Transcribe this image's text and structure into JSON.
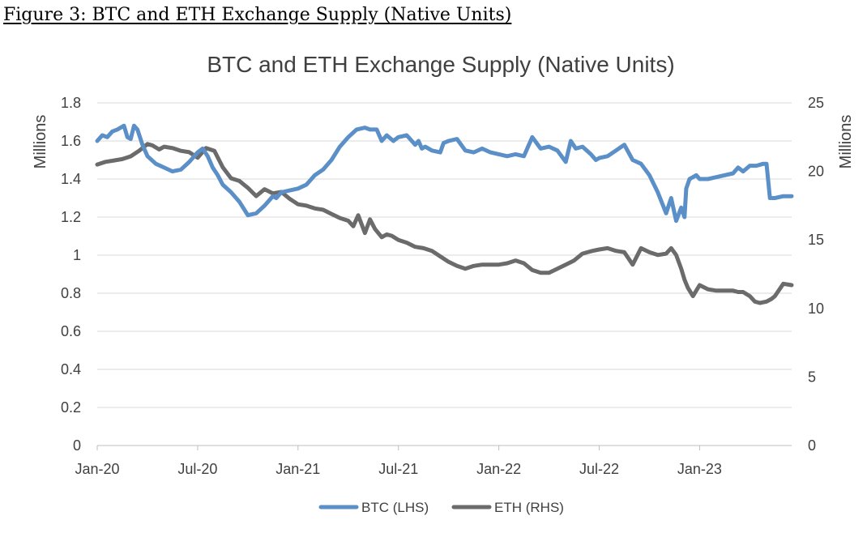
{
  "figure_caption": "Figure 3: BTC and ETH Exchange Supply (Native Units)",
  "colors": {
    "btc": "#5B8FC7",
    "eth": "#6B6B6B",
    "grid": "#D9D9D9",
    "axis": "#BFBFBF",
    "text": "#404040"
  },
  "chart_data": {
    "type": "line",
    "title": "BTC and ETH Exchange Supply (Native Units)",
    "ylabel_left": "Millions",
    "ylabel_right": "Millions",
    "x_ticks": [
      "Jan-20",
      "Jul-20",
      "Jan-21",
      "Jul-21",
      "Jan-22",
      "Jul-22",
      "Jan-23"
    ],
    "x_range_months": [
      0,
      41.5
    ],
    "ylim_left": [
      0,
      1.8
    ],
    "ylim_right": [
      0,
      25
    ],
    "y_ticks_left": [
      "0",
      "0.2",
      "0.4",
      "0.6",
      "0.8",
      "1",
      "1.2",
      "1.4",
      "1.6",
      "1.8"
    ],
    "y_ticks_right": [
      "0",
      "5",
      "10",
      "15",
      "20",
      "25"
    ],
    "legend": "bottom-center",
    "series": [
      {
        "name": "BTC (LHS)",
        "axis": "left",
        "x": [
          0,
          0.3,
          0.6,
          0.9,
          1.2,
          1.6,
          1.8,
          2.0,
          2.2,
          2.4,
          2.7,
          3.0,
          3.5,
          4.0,
          4.5,
          5.0,
          5.5,
          6.0,
          6.3,
          6.6,
          6.9,
          7.2,
          7.5,
          8.0,
          8.5,
          9.0,
          9.5,
          10.0,
          10.5,
          10.7,
          11.0,
          11.5,
          12.0,
          12.5,
          13.0,
          13.5,
          14.0,
          14.5,
          15.0,
          15.5,
          16.0,
          16.3,
          16.7,
          17.0,
          17.3,
          17.7,
          18.0,
          18.5,
          19.0,
          19.2,
          19.4,
          19.6,
          20.0,
          20.5,
          20.7,
          21.0,
          21.5,
          22.0,
          22.5,
          23.0,
          23.5,
          24.0,
          24.5,
          25.0,
          25.5,
          26.0,
          26.5,
          27.0,
          27.5,
          28.0,
          28.3,
          28.6,
          29.0,
          29.5,
          29.8,
          30.0,
          30.5,
          31.0,
          31.5,
          32.0,
          32.5,
          33.0,
          33.5,
          34.0,
          34.3,
          34.6,
          34.9,
          35.1,
          35.2,
          35.4,
          35.6,
          35.8,
          36.0,
          36.5,
          37.0,
          37.5,
          38.0,
          38.3,
          38.6,
          39.0,
          39.4,
          39.8,
          40.0,
          40.2,
          40.5,
          41.0,
          41.5
        ],
        "values": [
          1.6,
          1.63,
          1.62,
          1.65,
          1.66,
          1.68,
          1.62,
          1.61,
          1.68,
          1.66,
          1.58,
          1.52,
          1.48,
          1.46,
          1.44,
          1.45,
          1.49,
          1.54,
          1.56,
          1.52,
          1.46,
          1.42,
          1.37,
          1.33,
          1.28,
          1.21,
          1.22,
          1.26,
          1.31,
          1.3,
          1.33,
          1.34,
          1.35,
          1.37,
          1.42,
          1.45,
          1.5,
          1.57,
          1.62,
          1.66,
          1.67,
          1.66,
          1.66,
          1.6,
          1.63,
          1.6,
          1.62,
          1.63,
          1.58,
          1.6,
          1.56,
          1.57,
          1.55,
          1.54,
          1.59,
          1.6,
          1.61,
          1.55,
          1.54,
          1.56,
          1.54,
          1.53,
          1.52,
          1.53,
          1.52,
          1.62,
          1.56,
          1.57,
          1.55,
          1.49,
          1.6,
          1.56,
          1.57,
          1.53,
          1.5,
          1.51,
          1.52,
          1.55,
          1.58,
          1.5,
          1.48,
          1.42,
          1.33,
          1.22,
          1.3,
          1.18,
          1.25,
          1.2,
          1.35,
          1.4,
          1.41,
          1.42,
          1.4,
          1.4,
          1.41,
          1.42,
          1.43,
          1.46,
          1.44,
          1.47,
          1.47,
          1.48,
          1.48,
          1.3,
          1.3,
          1.31,
          1.31
        ]
      },
      {
        "name": "ETH (RHS)",
        "axis": "right",
        "x": [
          0,
          0.5,
          1.0,
          1.5,
          2.0,
          2.5,
          3.0,
          3.3,
          3.7,
          4.0,
          4.5,
          5.0,
          5.5,
          6.0,
          6.5,
          7.0,
          7.5,
          8.0,
          8.5,
          9.0,
          9.5,
          10.0,
          10.5,
          11.0,
          11.5,
          12.0,
          12.5,
          13.0,
          13.5,
          14.0,
          14.5,
          15.0,
          15.3,
          15.6,
          16.0,
          16.3,
          16.6,
          17.0,
          17.3,
          17.6,
          18.0,
          18.5,
          19.0,
          19.5,
          20.0,
          20.5,
          21.0,
          21.5,
          22.0,
          22.5,
          23.0,
          23.5,
          24.0,
          24.5,
          25.0,
          25.5,
          26.0,
          26.5,
          27.0,
          27.5,
          28.0,
          28.5,
          29.0,
          29.3,
          29.6,
          30.0,
          30.5,
          31.0,
          31.5,
          32.0,
          32.5,
          33.0,
          33.5,
          34.0,
          34.3,
          34.6,
          34.9,
          35.1,
          35.3,
          35.6,
          36.0,
          36.5,
          37.0,
          37.5,
          38.0,
          38.3,
          38.6,
          39.0,
          39.3,
          39.6,
          40.0,
          40.3,
          40.5,
          41.0,
          41.5
        ],
        "values": [
          20.5,
          20.7,
          20.8,
          20.9,
          21.1,
          21.5,
          22.0,
          21.9,
          21.6,
          21.8,
          21.7,
          21.5,
          21.4,
          21.0,
          21.7,
          21.5,
          20.3,
          19.5,
          19.3,
          18.8,
          18.2,
          18.7,
          18.4,
          18.5,
          18.0,
          17.6,
          17.5,
          17.3,
          17.2,
          16.9,
          16.6,
          16.4,
          16.0,
          16.8,
          15.5,
          16.5,
          15.8,
          15.2,
          15.4,
          15.3,
          15.0,
          14.8,
          14.5,
          14.4,
          14.2,
          13.8,
          13.4,
          13.1,
          12.9,
          13.1,
          13.2,
          13.2,
          13.2,
          13.3,
          13.5,
          13.3,
          12.8,
          12.6,
          12.6,
          12.9,
          13.2,
          13.5,
          14.0,
          14.1,
          14.2,
          14.3,
          14.4,
          14.2,
          14.1,
          13.2,
          14.4,
          14.1,
          13.9,
          14.0,
          14.4,
          13.9,
          12.9,
          12.1,
          11.5,
          10.9,
          11.7,
          11.4,
          11.3,
          11.3,
          11.3,
          11.2,
          11.2,
          10.9,
          10.5,
          10.4,
          10.5,
          10.7,
          10.9,
          11.8,
          11.7
        ]
      }
    ]
  }
}
